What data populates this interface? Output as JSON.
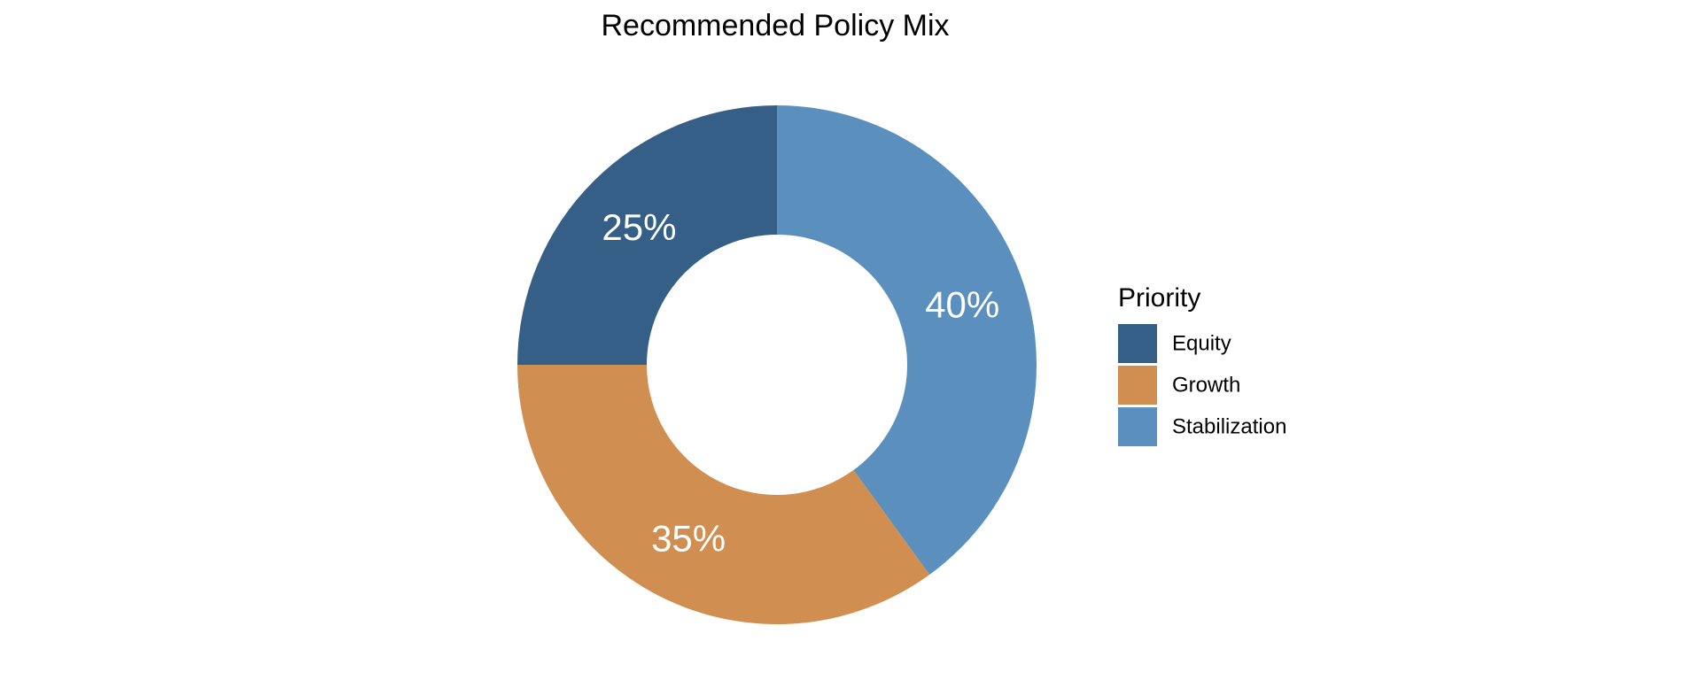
{
  "chart_data": {
    "type": "pie",
    "variant": "donut",
    "title": "Recommended Policy Mix",
    "start": "top",
    "direction": "clockwise",
    "slices": [
      {
        "name": "Stabilization",
        "value": 40,
        "label": "40%",
        "color": "#5a8fbe"
      },
      {
        "name": "Growth",
        "value": 35,
        "label": "35%",
        "color": "#d08f50"
      },
      {
        "name": "Equity",
        "value": 25,
        "label": "25%",
        "color": "#365f87"
      }
    ],
    "legend": {
      "title": "Priority",
      "position": "right",
      "entries": [
        {
          "name": "Equity",
          "color": "#365f87"
        },
        {
          "name": "Growth",
          "color": "#d08f50"
        },
        {
          "name": "Stabilization",
          "color": "#5a8fbe"
        }
      ]
    }
  }
}
